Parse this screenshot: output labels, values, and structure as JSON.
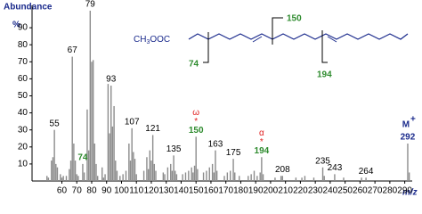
{
  "chart_data": {
    "type": "stem",
    "ylabel": "Abundance",
    "yunit": "%",
    "xlabel": "m/z",
    "xlim": [
      40,
      295
    ],
    "xticks": [
      60,
      70,
      80,
      90,
      100,
      110,
      120,
      130,
      140,
      150,
      160,
      170,
      180,
      190,
      200,
      210,
      220,
      230,
      240,
      250,
      260,
      270,
      280,
      290
    ],
    "ylim": [
      0,
      100
    ],
    "yticks": [
      10,
      20,
      30,
      40,
      50,
      60,
      70,
      80,
      90
    ],
    "color": "#8c8c8c",
    "x": [
      50,
      51,
      53,
      54,
      55,
      56,
      57,
      59,
      60,
      61,
      63,
      65,
      66,
      67,
      68,
      69,
      70,
      71,
      74,
      75,
      77,
      78,
      79,
      80,
      81,
      82,
      83,
      84,
      87,
      88,
      89,
      91,
      92,
      93,
      94,
      95,
      96,
      97,
      99,
      101,
      103,
      105,
      106,
      107,
      108,
      109,
      110,
      115,
      117,
      118,
      119,
      120,
      121,
      122,
      123,
      128,
      129,
      131,
      133,
      134,
      135,
      136,
      137,
      141,
      143,
      145,
      147,
      148,
      149,
      150,
      151,
      155,
      157,
      159,
      161,
      162,
      163,
      164,
      169,
      171,
      173,
      175,
      176,
      179,
      185,
      187,
      189,
      191,
      193,
      194,
      195,
      203,
      207,
      208,
      217,
      221,
      223,
      229,
      235,
      236,
      243,
      249,
      261,
      264,
      292,
      293
    ],
    "values": [
      3,
      2,
      12,
      14,
      30,
      10,
      8,
      4,
      2,
      3,
      3,
      7,
      12,
      73,
      22,
      12,
      4,
      3,
      10,
      5,
      42,
      18,
      100,
      70,
      71,
      22,
      10,
      3,
      8,
      2,
      4,
      57,
      28,
      56,
      32,
      44,
      12,
      6,
      3,
      4,
      6,
      22,
      12,
      31,
      17,
      13,
      4,
      6,
      14,
      7,
      18,
      12,
      27,
      10,
      6,
      5,
      4,
      8,
      10,
      6,
      15,
      6,
      4,
      4,
      5,
      6,
      8,
      5,
      9,
      26,
      7,
      5,
      6,
      8,
      10,
      5,
      18,
      6,
      3,
      5,
      6,
      13,
      5,
      3,
      3,
      4,
      6,
      3,
      5,
      14,
      4,
      2,
      3,
      3,
      2,
      2,
      3,
      2,
      8,
      3,
      4,
      2,
      2,
      2,
      22,
      5
    ],
    "peak_labels": [
      55,
      67,
      79,
      93,
      107,
      121,
      135,
      163,
      175,
      208,
      235,
      243,
      264,
      74,
      150,
      194,
      292
    ],
    "peak_label_colors": [
      "#000",
      "#000",
      "#000",
      "#000",
      "#000",
      "#000",
      "#000",
      "#000",
      "#000",
      "#000",
      "#000",
      "#000",
      "#000",
      "#2e8b2e",
      "#2e8b2e",
      "#2e8b2e",
      "#1a2a8c"
    ],
    "markers": [
      {
        "x": 150,
        "symbol": "ω",
        "star": "*"
      },
      {
        "x": 194,
        "symbol": "α",
        "star": "*"
      }
    ],
    "molecular_ion": {
      "x": 292,
      "label": "M",
      "charge": "+"
    }
  },
  "structure": {
    "prefix": "CH",
    "sub": "3",
    "suffix": "OOC",
    "fragments": [
      150,
      74,
      194
    ]
  }
}
